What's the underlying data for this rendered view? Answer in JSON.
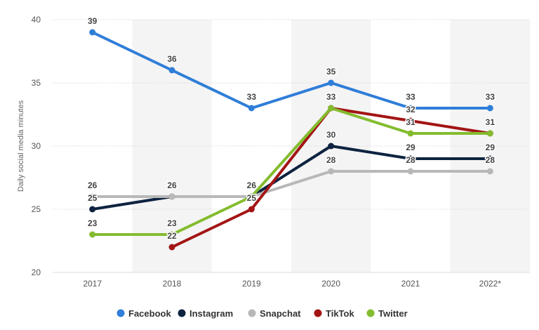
{
  "chart_data": {
    "type": "line",
    "ylabel": "Daily social media minutes",
    "categories": [
      "2017",
      "2018",
      "2019",
      "2020",
      "2021",
      "2022*"
    ],
    "ylim": [
      20,
      40
    ],
    "yticks": [
      20,
      25,
      30,
      35,
      40
    ],
    "grid": true,
    "legend_position": "bottom",
    "series": [
      {
        "name": "Facebook",
        "color": "#2f7ed8",
        "values": [
          39,
          36,
          33,
          35,
          33,
          33
        ]
      },
      {
        "name": "Instagram",
        "color": "#0d2340",
        "values": [
          25,
          26,
          26,
          30,
          29,
          29
        ]
      },
      {
        "name": "Snapchat",
        "color": "#b8b8b8",
        "values": [
          26,
          26,
          26,
          28,
          28,
          28
        ]
      },
      {
        "name": "TikTok",
        "color": "#a31515",
        "values": [
          null,
          22,
          25,
          33,
          32,
          31
        ]
      },
      {
        "name": "Twitter",
        "color": "#84bc2f",
        "values": [
          23,
          23,
          26,
          33,
          31,
          31
        ]
      }
    ]
  }
}
